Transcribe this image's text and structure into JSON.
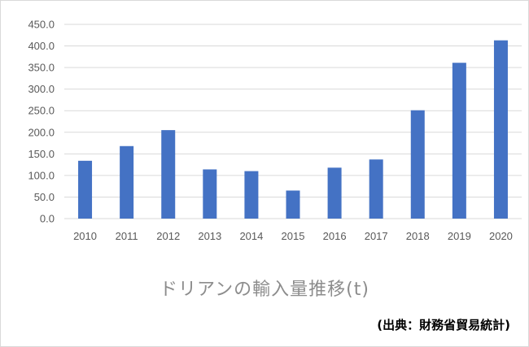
{
  "chart_data": {
    "type": "bar",
    "categories": [
      "2010",
      "2011",
      "2012",
      "2013",
      "2014",
      "2015",
      "2016",
      "2017",
      "2018",
      "2019",
      "2020"
    ],
    "values": [
      134,
      168,
      205,
      114,
      110,
      65,
      118,
      137,
      251,
      361,
      413
    ],
    "title": "ドリアンの輸入量推移(t)",
    "xlabel": "",
    "ylabel": "",
    "ylim": [
      0,
      450
    ],
    "yticks": [
      "0.0",
      "50.0",
      "100.0",
      "150.0",
      "200.0",
      "250.0",
      "300.0",
      "350.0",
      "400.0",
      "450.0"
    ],
    "grid": true,
    "legend": "none",
    "bar_color": "#4472c4",
    "grid_color": "#d9d9d9"
  },
  "source_note": "(出典：財務省貿易統計)"
}
